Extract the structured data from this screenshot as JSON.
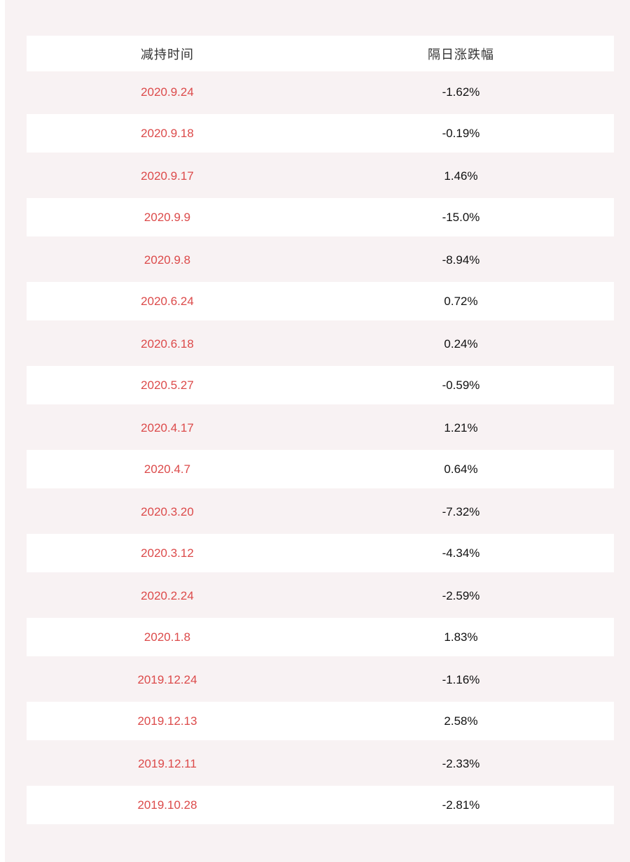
{
  "colors": {
    "page_background": "#f8f2f3",
    "row_white": "#ffffff",
    "date_red": "#dc4a4a",
    "change_black": "#111111",
    "header_gray": "#333333"
  },
  "table": {
    "header": {
      "date_label": "减持时间",
      "change_label": "隔日涨跌幅"
    },
    "rows": [
      {
        "date": "2020.9.24",
        "change": "-1.62%"
      },
      {
        "date": "2020.9.18",
        "change": "-0.19%"
      },
      {
        "date": "2020.9.17",
        "change": "1.46%"
      },
      {
        "date": "2020.9.9",
        "change": "-15.0%"
      },
      {
        "date": "2020.9.8",
        "change": "-8.94%"
      },
      {
        "date": "2020.6.24",
        "change": "0.72%"
      },
      {
        "date": "2020.6.18",
        "change": "0.24%"
      },
      {
        "date": "2020.5.27",
        "change": "-0.59%"
      },
      {
        "date": "2020.4.17",
        "change": "1.21%"
      },
      {
        "date": "2020.4.7",
        "change": "0.64%"
      },
      {
        "date": "2020.3.20",
        "change": "-7.32%"
      },
      {
        "date": "2020.3.12",
        "change": "-4.34%"
      },
      {
        "date": "2020.2.24",
        "change": "-2.59%"
      },
      {
        "date": "2020.1.8",
        "change": "1.83%"
      },
      {
        "date": "2019.12.24",
        "change": "-1.16%"
      },
      {
        "date": "2019.12.13",
        "change": "2.58%"
      },
      {
        "date": "2019.12.11",
        "change": "-2.33%"
      },
      {
        "date": "2019.10.28",
        "change": "-2.81%"
      }
    ]
  },
  "chart_data": {
    "type": "table",
    "title": "",
    "columns": [
      "减持时间",
      "隔日涨跌幅"
    ],
    "rows": [
      [
        "2020.9.24",
        "-1.62%"
      ],
      [
        "2020.9.18",
        "-0.19%"
      ],
      [
        "2020.9.17",
        "1.46%"
      ],
      [
        "2020.9.9",
        "-15.0%"
      ],
      [
        "2020.9.8",
        "-8.94%"
      ],
      [
        "2020.6.24",
        "0.72%"
      ],
      [
        "2020.6.18",
        "0.24%"
      ],
      [
        "2020.5.27",
        "-0.59%"
      ],
      [
        "2020.4.17",
        "1.21%"
      ],
      [
        "2020.4.7",
        "0.64%"
      ],
      [
        "2020.3.20",
        "-7.32%"
      ],
      [
        "2020.3.12",
        "-4.34%"
      ],
      [
        "2020.2.24",
        "-2.59%"
      ],
      [
        "2020.1.8",
        "1.83%"
      ],
      [
        "2019.12.24",
        "-1.16%"
      ],
      [
        "2019.12.13",
        "2.58%"
      ],
      [
        "2019.12.11",
        "-2.33%"
      ],
      [
        "2019.10.28",
        "-2.81%"
      ]
    ],
    "change_values_percent": [
      -1.62,
      -0.19,
      1.46,
      -15.0,
      -8.94,
      0.72,
      0.24,
      -0.59,
      1.21,
      0.64,
      -7.32,
      -4.34,
      -2.59,
      1.83,
      -1.16,
      2.58,
      -2.33,
      -2.81
    ]
  }
}
